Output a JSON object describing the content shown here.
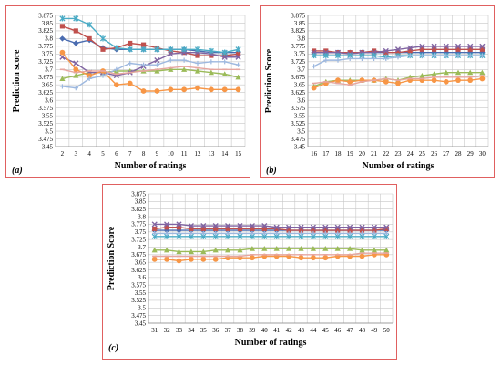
{
  "colors": {
    "dark_blue": "#4a6cb0",
    "red": "#c0504d",
    "green": "#9bbb59",
    "purple": "#8064a2",
    "cyan": "#4bacc6",
    "orange": "#f79646",
    "light_blue": "#9db8df",
    "pink": "#e6a6a0"
  },
  "chart_data": [
    {
      "panel": "(a)",
      "type": "line",
      "xlabel": "Number of ratings",
      "ylabel": "Prediction score",
      "ylim": [
        3.45,
        3.875
      ],
      "yticks": [
        "3.45",
        "3.475",
        "3.5",
        "3.525",
        "3.55",
        "3.575",
        "3.6",
        "3.625",
        "3.65",
        "3.675",
        "3.7",
        "3.725",
        "3.75",
        "3.775",
        "3.8",
        "3.825",
        "3.85",
        "3.875"
      ],
      "x": [
        "2",
        "3",
        "4",
        "5",
        "6",
        "7",
        "8",
        "9",
        "10",
        "11",
        "12",
        "13",
        "14",
        "15"
      ],
      "grid": true,
      "series": [
        {
          "color": "dark_blue",
          "marker": "diamond",
          "values": [
            3.8,
            3.785,
            3.795,
            3.77,
            3.765,
            3.765,
            3.765,
            3.765,
            3.765,
            3.765,
            3.76,
            3.755,
            3.755,
            3.755
          ]
        },
        {
          "color": "red",
          "marker": "square",
          "values": [
            3.84,
            3.825,
            3.8,
            3.765,
            3.77,
            3.785,
            3.78,
            3.77,
            3.76,
            3.755,
            3.745,
            3.745,
            3.745,
            3.75
          ]
        },
        {
          "color": "green",
          "marker": "triangle",
          "values": [
            3.67,
            3.68,
            3.69,
            3.69,
            3.695,
            3.695,
            3.695,
            3.695,
            3.7,
            3.7,
            3.695,
            3.69,
            3.685,
            3.675
          ]
        },
        {
          "color": "purple",
          "marker": "x",
          "values": [
            3.74,
            3.72,
            3.69,
            3.69,
            3.68,
            3.69,
            3.71,
            3.73,
            3.75,
            3.755,
            3.755,
            3.75,
            3.74,
            3.74
          ]
        },
        {
          "color": "cyan",
          "marker": "star",
          "values": [
            3.865,
            3.865,
            3.845,
            3.8,
            3.77,
            3.765,
            3.765,
            3.765,
            3.765,
            3.765,
            3.765,
            3.76,
            3.755,
            3.765
          ]
        },
        {
          "color": "orange",
          "marker": "circle",
          "values": [
            3.755,
            3.7,
            3.68,
            3.695,
            3.65,
            3.655,
            3.63,
            3.63,
            3.635,
            3.635,
            3.64,
            3.635,
            3.635,
            3.635
          ]
        },
        {
          "color": "light_blue",
          "marker": "plus",
          "values": [
            3.645,
            3.64,
            3.67,
            3.68,
            3.7,
            3.72,
            3.715,
            3.715,
            3.73,
            3.73,
            3.72,
            3.725,
            3.725,
            3.715
          ]
        },
        {
          "color": "pink",
          "marker": "dash",
          "values": [
            3.7,
            3.69,
            3.695,
            3.695,
            3.685,
            3.69,
            3.695,
            3.7,
            3.705,
            3.71,
            3.705,
            3.7,
            3.7,
            3.7
          ]
        }
      ]
    },
    {
      "panel": "(b)",
      "type": "line",
      "xlabel": "Number of ratings",
      "ylabel": "Prediction Score",
      "ylim": [
        3.45,
        3.875
      ],
      "yticks": [
        "3.45",
        "3.475",
        "3.5",
        "3.525",
        "3.55",
        "3.575",
        "3.6",
        "3.625",
        "3.65",
        "3.675",
        "3.7",
        "3.725",
        "3.75",
        "3.775",
        "3.8",
        "3.825",
        "3.85",
        "3.875"
      ],
      "x": [
        "16",
        "17",
        "18",
        "19",
        "20",
        "21",
        "22",
        "23",
        "24",
        "25",
        "26",
        "27",
        "28",
        "29",
        "30"
      ],
      "grid": true,
      "series": [
        {
          "color": "dark_blue",
          "marker": "diamond",
          "values": [
            3.755,
            3.755,
            3.755,
            3.755,
            3.755,
            3.755,
            3.755,
            3.755,
            3.755,
            3.755,
            3.755,
            3.755,
            3.755,
            3.755,
            3.755
          ]
        },
        {
          "color": "red",
          "marker": "square",
          "values": [
            3.76,
            3.76,
            3.755,
            3.755,
            3.755,
            3.76,
            3.755,
            3.755,
            3.76,
            3.765,
            3.765,
            3.765,
            3.765,
            3.765,
            3.765
          ]
        },
        {
          "color": "green",
          "marker": "triangle",
          "values": [
            3.645,
            3.66,
            3.665,
            3.665,
            3.665,
            3.665,
            3.67,
            3.665,
            3.675,
            3.68,
            3.685,
            3.69,
            3.69,
            3.69,
            3.69
          ]
        },
        {
          "color": "purple",
          "marker": "x",
          "values": [
            3.755,
            3.755,
            3.755,
            3.75,
            3.755,
            3.755,
            3.76,
            3.765,
            3.77,
            3.775,
            3.775,
            3.775,
            3.775,
            3.775,
            3.775
          ]
        },
        {
          "color": "cyan",
          "marker": "star",
          "values": [
            3.745,
            3.745,
            3.745,
            3.745,
            3.745,
            3.745,
            3.74,
            3.745,
            3.745,
            3.745,
            3.745,
            3.745,
            3.745,
            3.745,
            3.745
          ]
        },
        {
          "color": "orange",
          "marker": "circle",
          "values": [
            3.64,
            3.655,
            3.665,
            3.66,
            3.665,
            3.665,
            3.66,
            3.655,
            3.665,
            3.665,
            3.665,
            3.66,
            3.665,
            3.665,
            3.67
          ]
        },
        {
          "color": "light_blue",
          "marker": "plus",
          "values": [
            3.71,
            3.73,
            3.73,
            3.735,
            3.735,
            3.735,
            3.735,
            3.74,
            3.745,
            3.745,
            3.745,
            3.745,
            3.745,
            3.745,
            3.745
          ]
        },
        {
          "color": "pink",
          "marker": "dash",
          "values": [
            3.655,
            3.66,
            3.655,
            3.65,
            3.66,
            3.665,
            3.67,
            3.665,
            3.67,
            3.67,
            3.675,
            3.675,
            3.675,
            3.675,
            3.68
          ]
        }
      ]
    },
    {
      "panel": "(c)",
      "type": "line",
      "xlabel": "Number of ratings",
      "ylabel": "Prediction Score",
      "ylim": [
        3.45,
        3.875
      ],
      "yticks": [
        "3.45",
        "3.475",
        "3.5",
        "3.525",
        "3.55",
        "3.575",
        "3.6",
        "3.625",
        "3.65",
        "3.675",
        "3.7",
        "3.725",
        "3.75",
        "3.775",
        "3.8",
        "3.825",
        "3.85",
        "3.875"
      ],
      "x": [
        "31",
        "32",
        "33",
        "34",
        "35",
        "36",
        "37",
        "38",
        "39",
        "40",
        "41",
        "42",
        "43",
        "44",
        "45",
        "46",
        "47",
        "48",
        "49",
        "50"
      ],
      "grid": true,
      "series": [
        {
          "color": "dark_blue",
          "marker": "diamond",
          "values": [
            3.755,
            3.755,
            3.755,
            3.755,
            3.755,
            3.755,
            3.755,
            3.755,
            3.755,
            3.755,
            3.755,
            3.755,
            3.755,
            3.755,
            3.755,
            3.755,
            3.755,
            3.755,
            3.755,
            3.755
          ]
        },
        {
          "color": "red",
          "marker": "square",
          "values": [
            3.76,
            3.765,
            3.765,
            3.76,
            3.76,
            3.76,
            3.76,
            3.76,
            3.76,
            3.76,
            3.76,
            3.755,
            3.755,
            3.755,
            3.755,
            3.755,
            3.755,
            3.755,
            3.755,
            3.76
          ]
        },
        {
          "color": "green",
          "marker": "triangle",
          "values": [
            3.69,
            3.69,
            3.685,
            3.685,
            3.685,
            3.69,
            3.69,
            3.69,
            3.695,
            3.695,
            3.695,
            3.695,
            3.695,
            3.695,
            3.695,
            3.695,
            3.695,
            3.69,
            3.69,
            3.69
          ]
        },
        {
          "color": "purple",
          "marker": "x",
          "values": [
            3.775,
            3.775,
            3.775,
            3.77,
            3.77,
            3.77,
            3.77,
            3.77,
            3.77,
            3.77,
            3.765,
            3.765,
            3.765,
            3.765,
            3.765,
            3.765,
            3.765,
            3.765,
            3.765,
            3.765
          ]
        },
        {
          "color": "cyan",
          "marker": "star",
          "values": [
            3.735,
            3.735,
            3.735,
            3.735,
            3.735,
            3.735,
            3.735,
            3.735,
            3.735,
            3.735,
            3.735,
            3.735,
            3.735,
            3.735,
            3.735,
            3.735,
            3.735,
            3.735,
            3.735,
            3.735
          ]
        },
        {
          "color": "orange",
          "marker": "circle",
          "values": [
            3.66,
            3.66,
            3.655,
            3.66,
            3.66,
            3.66,
            3.665,
            3.665,
            3.665,
            3.67,
            3.67,
            3.67,
            3.665,
            3.665,
            3.665,
            3.67,
            3.67,
            3.67,
            3.675,
            3.675
          ]
        },
        {
          "color": "light_blue",
          "marker": "plus",
          "values": [
            3.745,
            3.745,
            3.745,
            3.745,
            3.745,
            3.745,
            3.745,
            3.745,
            3.745,
            3.745,
            3.745,
            3.745,
            3.745,
            3.745,
            3.745,
            3.745,
            3.745,
            3.745,
            3.745,
            3.745
          ]
        },
        {
          "color": "pink",
          "marker": "dash",
          "values": [
            3.67,
            3.67,
            3.67,
            3.67,
            3.67,
            3.67,
            3.67,
            3.67,
            3.675,
            3.675,
            3.675,
            3.675,
            3.675,
            3.675,
            3.675,
            3.675,
            3.675,
            3.68,
            3.68,
            3.68
          ]
        }
      ]
    }
  ]
}
